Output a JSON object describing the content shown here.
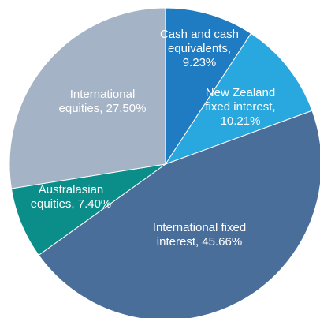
{
  "chart_data": {
    "type": "pie",
    "values": [
      9.23,
      10.21,
      45.66,
      7.4,
      27.5
    ],
    "labels": [
      [
        "Cash and cash",
        "equivalents,",
        "9.23%"
      ],
      [
        "New Zealand",
        "fixed interest,",
        "10.21%"
      ],
      [
        "International fixed",
        "interest, 45.66%"
      ],
      [
        "Australasian",
        "equities, 7.40%"
      ],
      [
        "International",
        "equities, 27.50%"
      ]
    ],
    "colors": [
      "#1f7bc2",
      "#29a8df",
      "#4a6e9a",
      "#0b8e8a",
      "#a4b3c6"
    ]
  }
}
